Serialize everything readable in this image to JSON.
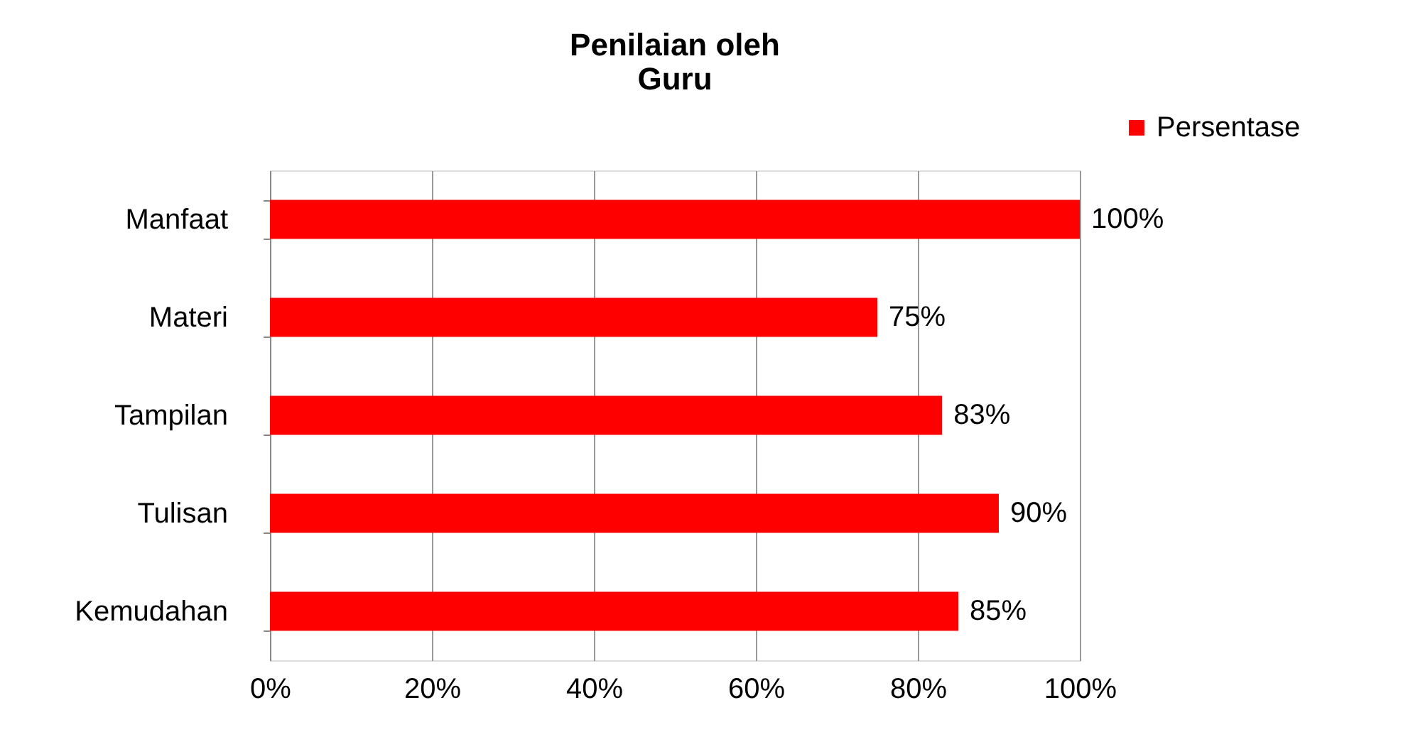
{
  "chart_data": {
    "type": "bar",
    "orientation": "horizontal",
    "title": "Penilaian oleh\nGuru",
    "categories": [
      "Manfaat",
      "Materi",
      "Tampilan",
      "Tulisan",
      "Kemudahan"
    ],
    "series": [
      {
        "name": "Persentase",
        "color": "#ff0000",
        "values": [
          100,
          75,
          83,
          90,
          85
        ],
        "value_labels": [
          "100%",
          "75%",
          "83%",
          "90%",
          "85%"
        ]
      }
    ],
    "xlim": [
      0,
      100
    ],
    "xticks": [
      {
        "value": 0,
        "label": "0%"
      },
      {
        "value": 20,
        "label": "20%"
      },
      {
        "value": 40,
        "label": "40%"
      },
      {
        "value": 60,
        "label": "60%"
      },
      {
        "value": 80,
        "label": "80%"
      },
      {
        "value": 100,
        "label": "100%"
      }
    ],
    "grid": "x",
    "legend": "top right"
  }
}
